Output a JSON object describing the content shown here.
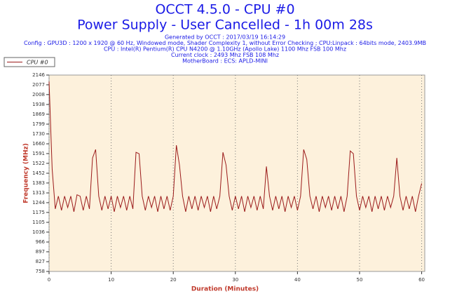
{
  "chart_data": {
    "type": "line",
    "title": "OCCT 4.5.0 - CPU #0",
    "subtitle": "Power Supply - User Cancelled - 1h 00m 28s",
    "info": [
      "Generated by OCCT : 2017/03/19 16:14:29",
      "Config : GPU3D : 1200 x 1920 @ 60 Hz, Windowed mode, Shader Complexity 1, without Error Checking ; CPU:Linpack : 64bits mode, 2403.9MB",
      "CPU : Intel(R) Pentium(R) CPU N4200 @ 1.10GHz (Apollo Lake) 1100 Mhz FSB 100 Mhz",
      "Current clock : 2493 Mhz FSB 108 Mhz",
      "MotherBoard : ECS: APLD-MINI"
    ],
    "xlabel": "Duration (Minutes)",
    "ylabel": "Frequency (MHz)",
    "xlim": [
      0,
      60.5
    ],
    "ylim": [
      758,
      2146
    ],
    "xticks": [
      0,
      10,
      20,
      30,
      40,
      50,
      60
    ],
    "yticks": [
      758,
      827,
      897,
      966,
      1036,
      1105,
      1175,
      1244,
      1313,
      1383,
      1452,
      1522,
      1591,
      1660,
      1730,
      1799,
      1869,
      1938,
      2008,
      2077,
      2146
    ],
    "grid": "x",
    "x": [
      0,
      0.5,
      1,
      1.5,
      2,
      2.5,
      3,
      3.5,
      4,
      4.5,
      5,
      5.5,
      6,
      6.5,
      7,
      7.5,
      8,
      8.5,
      9,
      9.5,
      10,
      10.5,
      11,
      11.5,
      12,
      12.5,
      13,
      13.5,
      14,
      14.5,
      15,
      15.5,
      16,
      16.5,
      17,
      17.5,
      18,
      18.5,
      19,
      19.5,
      20,
      20.5,
      21,
      21.5,
      22,
      22.5,
      23,
      23.5,
      24,
      24.5,
      25,
      25.5,
      26,
      26.5,
      27,
      27.5,
      28,
      28.5,
      29,
      29.5,
      30,
      30.5,
      31,
      31.5,
      32,
      32.5,
      33,
      33.5,
      34,
      34.5,
      35,
      35.5,
      36,
      36.5,
      37,
      37.5,
      38,
      38.5,
      39,
      39.5,
      40,
      40.5,
      41,
      41.5,
      42,
      42.5,
      43,
      43.5,
      44,
      44.5,
      45,
      45.5,
      46,
      46.5,
      47,
      47.5,
      48,
      48.5,
      49,
      49.5,
      50,
      50.5,
      51,
      51.5,
      52,
      52.5,
      53,
      53.5,
      54,
      54.5,
      55,
      55.5,
      56,
      56.5,
      57,
      57.5,
      58,
      58.5,
      59,
      59.5,
      60
    ],
    "series": [
      {
        "name": "CPU #0",
        "color": "#9b1a1a",
        "values": [
          2100,
          1480,
          1200,
          1290,
          1190,
          1290,
          1210,
          1290,
          1180,
          1300,
          1290,
          1190,
          1290,
          1200,
          1560,
          1620,
          1290,
          1190,
          1290,
          1200,
          1290,
          1180,
          1290,
          1210,
          1290,
          1190,
          1290,
          1200,
          1600,
          1590,
          1290,
          1190,
          1290,
          1210,
          1290,
          1180,
          1290,
          1200,
          1290,
          1190,
          1290,
          1650,
          1510,
          1290,
          1180,
          1290,
          1200,
          1290,
          1190,
          1290,
          1210,
          1290,
          1180,
          1290,
          1200,
          1290,
          1600,
          1510,
          1290,
          1190,
          1290,
          1200,
          1290,
          1180,
          1290,
          1210,
          1290,
          1190,
          1290,
          1200,
          1500,
          1290,
          1190,
          1290,
          1200,
          1290,
          1180,
          1290,
          1210,
          1290,
          1190,
          1290,
          1620,
          1550,
          1290,
          1200,
          1290,
          1180,
          1290,
          1210,
          1290,
          1190,
          1290,
          1200,
          1290,
          1180,
          1290,
          1610,
          1590,
          1290,
          1190,
          1290,
          1210,
          1290,
          1180,
          1290,
          1200,
          1290,
          1190,
          1290,
          1210,
          1290,
          1560,
          1290,
          1190,
          1290,
          1200,
          1290,
          1180,
          1290,
          1380
        ]
      }
    ]
  }
}
